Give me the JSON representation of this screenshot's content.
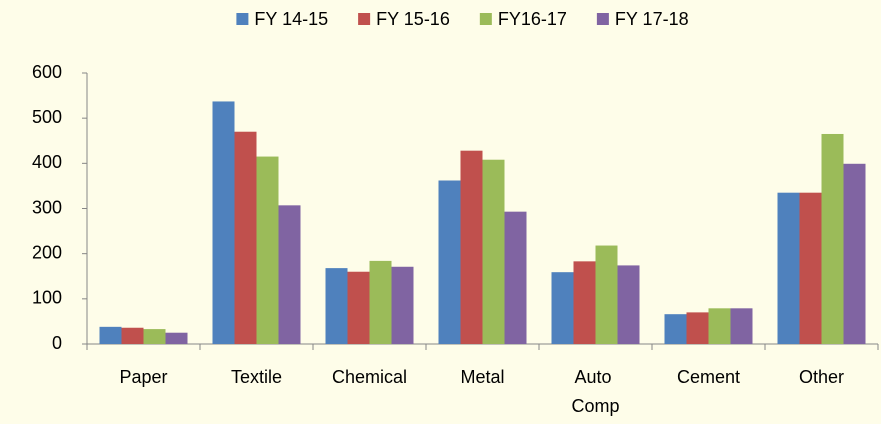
{
  "chart_data": {
    "type": "bar",
    "categories": [
      "Paper",
      "Textile",
      "Chemical",
      "Metal",
      "Auto Comp",
      "Cement",
      "Other"
    ],
    "series": [
      {
        "name": "FY 14-15",
        "color": "#4f81bd",
        "values": [
          38,
          537,
          168,
          362,
          159,
          66,
          335
        ]
      },
      {
        "name": "FY 15-16",
        "color": "#c0504d",
        "values": [
          36,
          470,
          160,
          428,
          183,
          70,
          335
        ]
      },
      {
        "name": "FY16-17",
        "color": "#9bbb59",
        "values": [
          33,
          415,
          184,
          408,
          218,
          79,
          465
        ]
      },
      {
        "name": "FY 17-18",
        "color": "#8064a2",
        "values": [
          25,
          307,
          171,
          293,
          174,
          79,
          399
        ]
      }
    ],
    "ylim": [
      0,
      600
    ],
    "yticks": [
      0,
      100,
      200,
      300,
      400,
      500,
      600
    ],
    "grid": false,
    "legend": "top"
  }
}
